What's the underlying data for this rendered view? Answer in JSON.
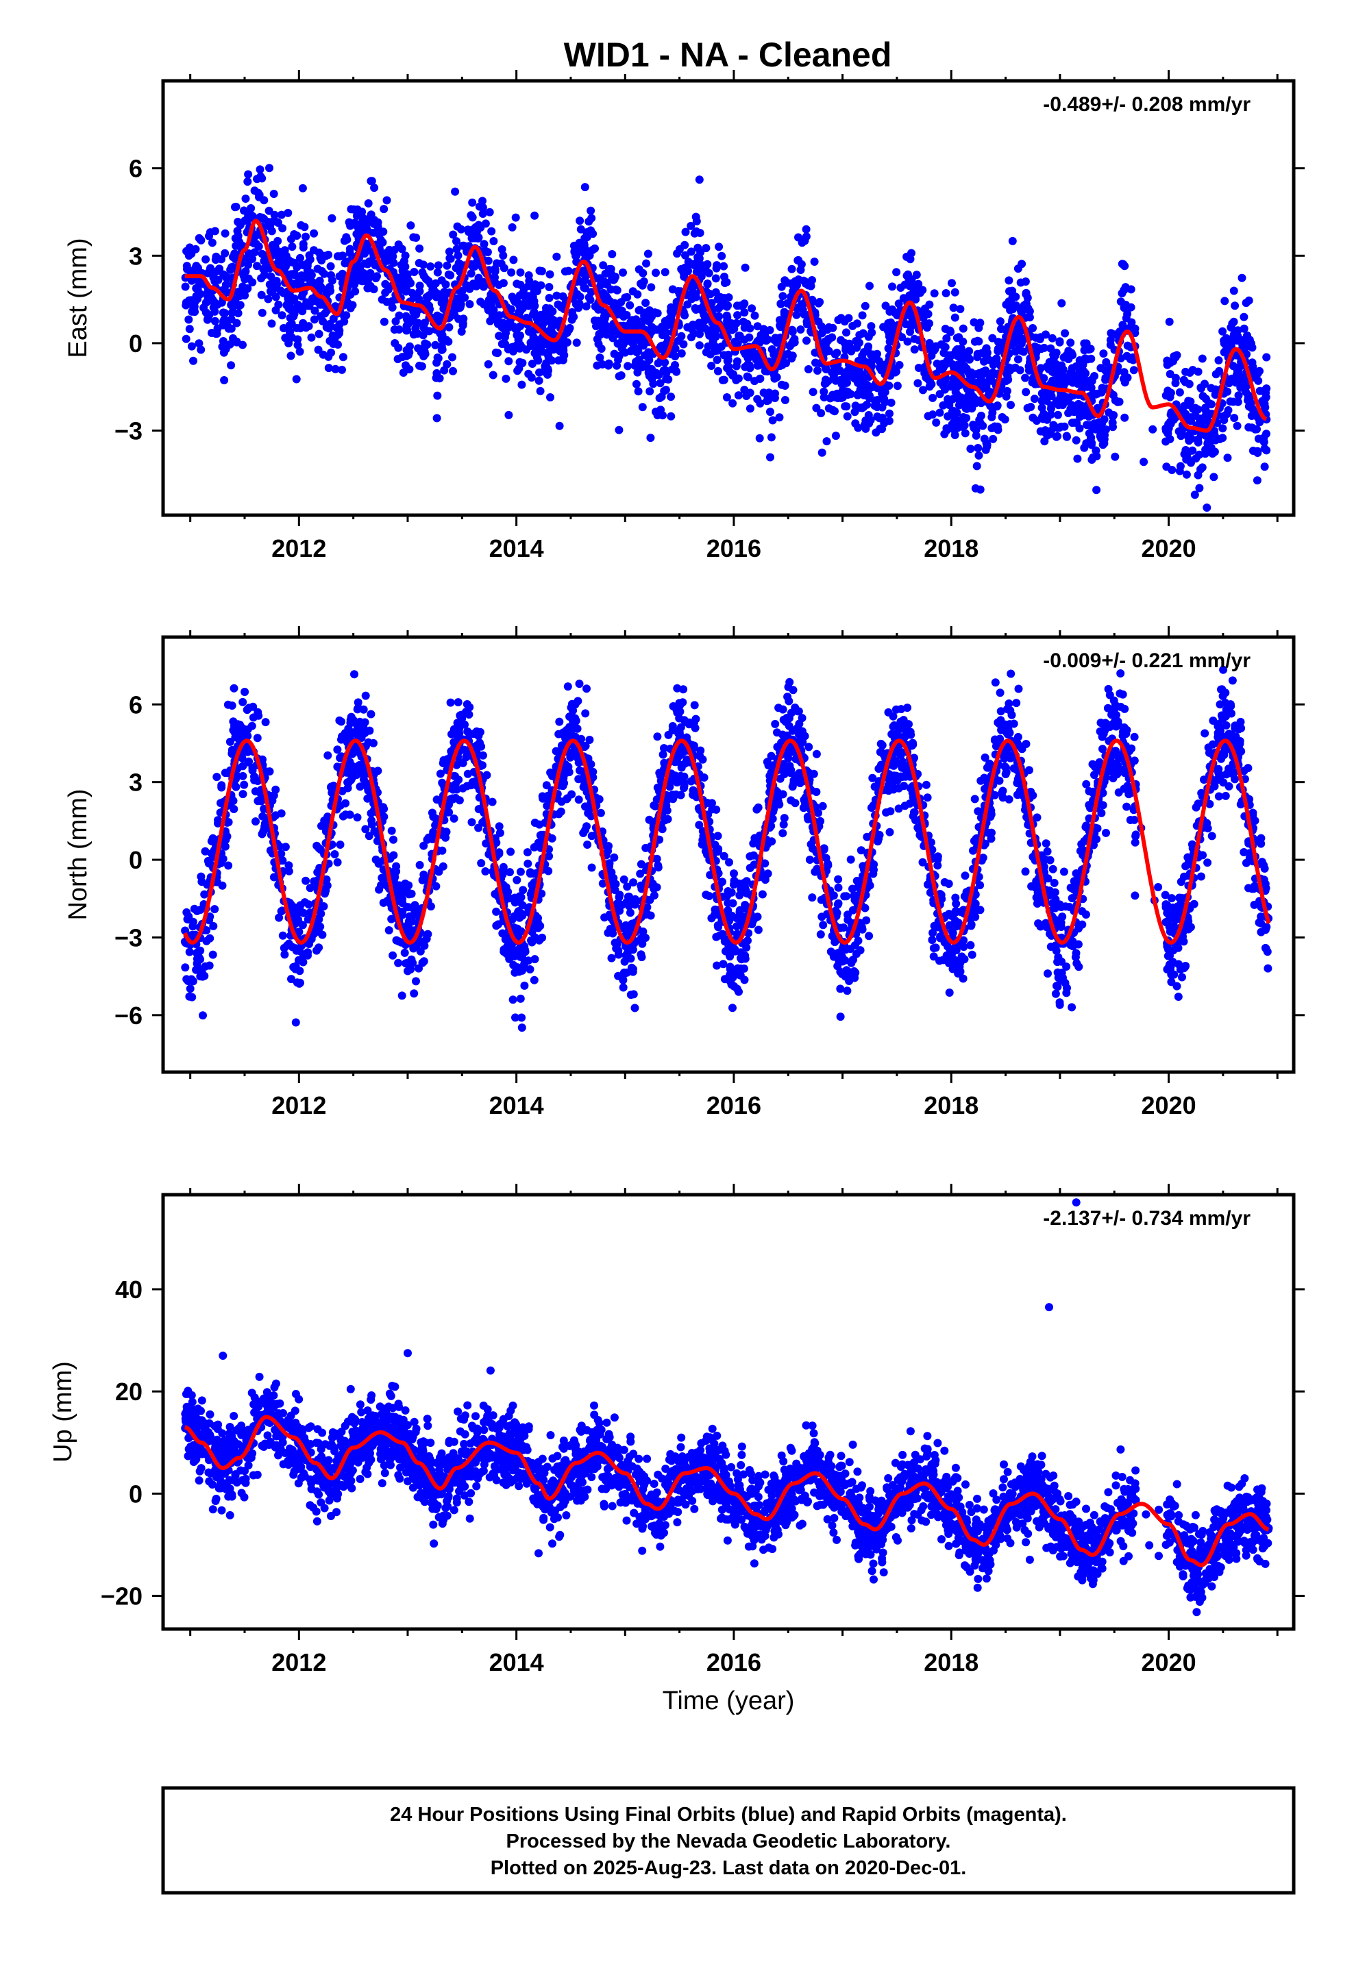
{
  "title": "WID1  - NA - Cleaned",
  "colors": {
    "points": "#0000ff",
    "model": "#ff0000",
    "frame": "#000000"
  },
  "footer": {
    "line1": "24 Hour Positions Using Final Orbits (blue) and Rapid Orbits (magenta).",
    "line2": "Processed by the Nevada Geodetic Laboratory.",
    "line3": "Plotted on 2025-Aug-23. Last data on 2020-Dec-01."
  },
  "chart_data": [
    {
      "type": "scatter",
      "ylabel": "East (mm)",
      "xlabel": "",
      "xlim": [
        2010.75,
        2021.15
      ],
      "ylim": [
        -5.9,
        9.0
      ],
      "x_ticks": [
        2012,
        2014,
        2016,
        2018,
        2020
      ],
      "y_ticks": [
        -3,
        0,
        3,
        6
      ],
      "rate": "-0.489+/- 0.208 mm/yr",
      "model": {
        "x": [
          2010.95,
          2011.1,
          2011.2,
          2011.35,
          2011.5,
          2011.6,
          2011.8,
          2011.95,
          2012.1,
          2012.2,
          2012.35,
          2012.5,
          2012.62,
          2012.8,
          2012.95,
          2013.1,
          2013.3,
          2013.45,
          2013.62,
          2013.8,
          2013.95,
          2014.1,
          2014.35,
          2014.62,
          2014.8,
          2015.0,
          2015.15,
          2015.35,
          2015.62,
          2015.85,
          2016.0,
          2016.2,
          2016.35,
          2016.62,
          2016.85,
          2017.0,
          2017.2,
          2017.35,
          2017.62,
          2017.85,
          2018.0,
          2018.2,
          2018.35,
          2018.62,
          2018.85,
          2019.0,
          2019.2,
          2019.35,
          2019.62,
          2019.85,
          2020.0,
          2020.2,
          2020.35,
          2020.62,
          2020.9
        ],
        "values": [
          2.3,
          2.3,
          1.9,
          1.5,
          3.2,
          4.2,
          2.5,
          1.8,
          1.9,
          1.6,
          1.0,
          2.8,
          3.7,
          2.5,
          1.4,
          1.3,
          0.5,
          1.9,
          3.3,
          1.8,
          0.9,
          0.7,
          0.1,
          2.8,
          1.3,
          0.4,
          0.4,
          -0.5,
          2.3,
          0.7,
          -0.2,
          -0.1,
          -0.9,
          1.8,
          -0.7,
          -0.6,
          -0.8,
          -1.4,
          1.4,
          -1.2,
          -1.0,
          -1.5,
          -2.0,
          0.9,
          -1.5,
          -1.6,
          -1.7,
          -2.5,
          0.4,
          -2.2,
          -2.1,
          -2.9,
          -3.0,
          -0.2,
          -2.6
        ]
      },
      "n_points": 3350,
      "scatter_sigma": 1.05
    },
    {
      "type": "scatter",
      "ylabel": "North (mm)",
      "xlabel": "",
      "xlim": [
        2010.75,
        2021.15
      ],
      "ylim": [
        -8.2,
        8.6
      ],
      "x_ticks": [
        2012,
        2014,
        2016,
        2018,
        2020
      ],
      "y_ticks": [
        -6,
        -3,
        0,
        3,
        6
      ],
      "rate": "-0.009+/- 0.221 mm/yr",
      "model": {
        "amplitude": 3.9,
        "offset": 0.7,
        "peak_phase": 0.52,
        "x_start": 2010.95,
        "x_end": 2020.92
      },
      "n_points": 3350,
      "scatter_sigma": 1.1
    },
    {
      "type": "scatter",
      "ylabel": "Up (mm)",
      "xlabel": "Time (year)",
      "xlim": [
        2010.75,
        2021.15
      ],
      "ylim": [
        -26.5,
        58.5
      ],
      "x_ticks": [
        2012,
        2014,
        2016,
        2018,
        2020
      ],
      "y_ticks": [
        -20,
        0,
        20,
        40
      ],
      "rate": "-2.137+/- 0.734 mm/yr",
      "model": {
        "x": [
          2010.95,
          2011.1,
          2011.3,
          2011.45,
          2011.7,
          2011.95,
          2012.15,
          2012.3,
          2012.5,
          2012.75,
          2012.95,
          2013.1,
          2013.3,
          2013.45,
          2013.75,
          2014.0,
          2014.2,
          2014.3,
          2014.55,
          2014.75,
          2015.0,
          2015.2,
          2015.3,
          2015.55,
          2015.75,
          2016.0,
          2016.2,
          2016.3,
          2016.55,
          2016.75,
          2017.0,
          2017.2,
          2017.3,
          2017.55,
          2017.75,
          2018.0,
          2018.2,
          2018.3,
          2018.55,
          2018.75,
          2019.0,
          2019.2,
          2019.3,
          2019.55,
          2019.75,
          2020.0,
          2020.2,
          2020.3,
          2020.55,
          2020.75,
          2020.92
        ],
        "values": [
          13,
          10,
          5,
          7,
          15,
          11,
          6,
          3,
          9,
          12,
          10,
          6,
          1,
          5,
          10,
          8,
          2,
          -1,
          6,
          8,
          4,
          -2,
          -3,
          4,
          5,
          0,
          -4,
          -5,
          2,
          4,
          -1,
          -6,
          -7,
          0,
          2,
          -3,
          -9,
          -10,
          -2,
          0,
          -5,
          -11,
          -12,
          -4,
          -2,
          -6,
          -13,
          -14,
          -6,
          -4,
          -7
        ]
      },
      "outliers": [
        [
          2018.9,
          36.5
        ],
        [
          2019.15,
          57
        ],
        [
          2013.0,
          27.5
        ],
        [
          2011.3,
          27
        ]
      ],
      "n_points": 3350,
      "scatter_sigma": 3.8
    }
  ]
}
